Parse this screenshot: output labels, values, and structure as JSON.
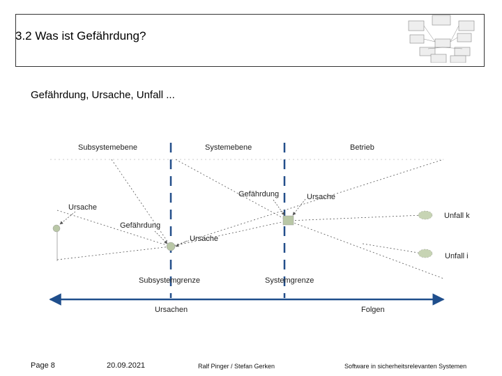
{
  "slide": {
    "title": "3.2 Was ist Gefährdung?",
    "subtitle": "Gefährdung, Ursache, Unfall ..."
  },
  "diagram": {
    "header": {
      "sub": "Subsystemebene",
      "sys": "Systemebene",
      "betrieb": "Betrieb"
    },
    "labels": {
      "ursache_left": "Ursache",
      "gefaehrdung_left": "Gefährdung",
      "ursache_mid": "Ursache",
      "gefaehrdung_mid": "Gefährdung",
      "ursache_right": "Ursache",
      "unfall_k": "Unfall k",
      "unfall_i": "Unfall i",
      "subsystemgrenze": "Subsystemgrenze",
      "systemgrenze": "Systemgrenze",
      "ursachen": "Ursachen",
      "folgen": "Folgen"
    }
  },
  "footer": {
    "page": "Page 8",
    "date": "20.09.2021",
    "authors": "Ralf Pinger / Stefan Gerken",
    "course": "Software in sicherheitsrelevanten Systemen"
  },
  "colors": {
    "dashed_lines": "#234f8a",
    "node_fill": "#b9c7a6",
    "arrow": "#1f4e8c"
  }
}
